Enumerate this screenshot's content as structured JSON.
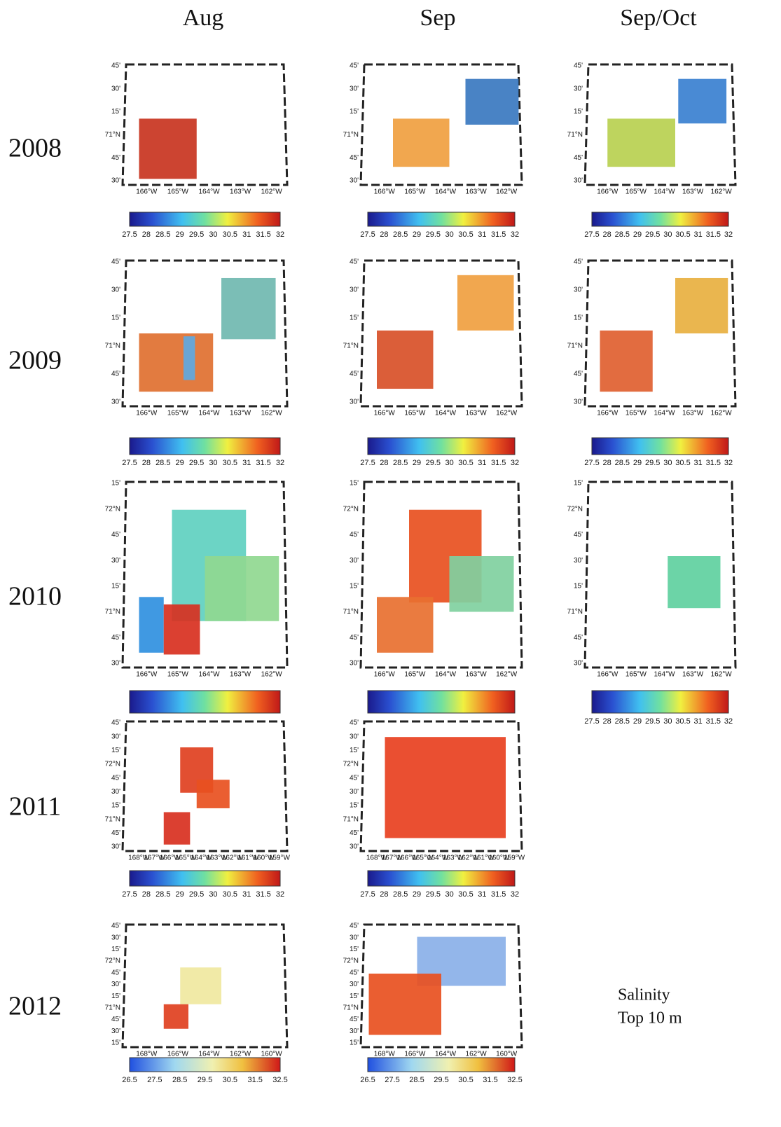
{
  "columns": [
    "Aug",
    "Sep",
    "Sep/Oct"
  ],
  "note": [
    "Salinity",
    "Top 10 m"
  ],
  "rows": [
    {
      "year": "2008",
      "panels": [
        {
          "lat": [
            "45'",
            "30'",
            "15'",
            "71°N",
            "45'",
            "30'"
          ],
          "lon": [
            "166°W",
            "165°W",
            "164°W",
            "163°W",
            "162°W"
          ],
          "colorbar": [
            "27.5",
            "28",
            "28.5",
            "29",
            "29.5",
            "30",
            "30.5",
            "31",
            "31.5",
            "32"
          ]
        },
        {
          "lat": [
            "45'",
            "30'",
            "15'",
            "71°N",
            "45'",
            "30'"
          ],
          "lon": [
            "166°W",
            "165°W",
            "164°W",
            "163°W",
            "162°W"
          ],
          "colorbar": [
            "27.5",
            "28",
            "28.5",
            "29",
            "29.5",
            "30",
            "30.5",
            "31",
            "31.5",
            "32"
          ]
        },
        {
          "lat": [
            "45'",
            "30'",
            "15'",
            "71°N",
            "45'",
            "30'"
          ],
          "lon": [
            "166°W",
            "165°W",
            "164°W",
            "163°W",
            "162°W"
          ],
          "colorbar": [
            "27.5",
            "28",
            "28.5",
            "29",
            "29.5",
            "30",
            "30.5",
            "31",
            "31.5",
            "32"
          ]
        }
      ]
    },
    {
      "year": "2009",
      "panels": [
        {
          "lat": [
            "45'",
            "30'",
            "15'",
            "71°N",
            "45'",
            "30'"
          ],
          "lon": [
            "166°W",
            "165°W",
            "164°W",
            "163°W",
            "162°W"
          ],
          "colorbar": [
            "27.5",
            "28",
            "28.5",
            "29",
            "29.5",
            "30",
            "30.5",
            "31",
            "31.5",
            "32"
          ]
        },
        {
          "lat": [
            "45'",
            "30'",
            "15'",
            "71°N",
            "45'",
            "30'"
          ],
          "lon": [
            "166°W",
            "165°W",
            "164°W",
            "163°W",
            "162°W"
          ],
          "colorbar": [
            "27.5",
            "28",
            "28.5",
            "29",
            "29.5",
            "30",
            "30.5",
            "31",
            "31.5",
            "32"
          ]
        },
        {
          "lat": [
            "45'",
            "30'",
            "15'",
            "71°N",
            "45'",
            "30'"
          ],
          "lon": [
            "166°W",
            "165°W",
            "164°W",
            "163°W",
            "162°W"
          ],
          "colorbar": [
            "27.5",
            "28",
            "28.5",
            "29",
            "29.5",
            "30",
            "30.5",
            "31",
            "31.5",
            "32"
          ]
        }
      ]
    },
    {
      "year": "2010",
      "panels": [
        {
          "lat": [
            "15'",
            "72°N",
            "45'",
            "30'",
            "15'",
            "71°N",
            "45'",
            "30'"
          ],
          "lon": [
            "166°W",
            "165°W",
            "164°W",
            "163°W",
            "162°W"
          ]
        },
        {
          "lat": [
            "15'",
            "72°N",
            "45'",
            "30'",
            "15'",
            "71°N",
            "45'",
            "30'"
          ],
          "lon": [
            "166°W",
            "165°W",
            "164°W",
            "163°W",
            "162°W"
          ]
        },
        {
          "lat": [
            "15'",
            "72°N",
            "45'",
            "30'",
            "15'",
            "71°N",
            "45'",
            "30'"
          ],
          "lon": [
            "166°W",
            "165°W",
            "164°W",
            "163°W",
            "162°W"
          ],
          "colorbar": [
            "27.5",
            "28",
            "28.5",
            "29",
            "29.5",
            "30",
            "30.5",
            "31",
            "31.5",
            "32"
          ]
        }
      ]
    },
    {
      "year": "2011",
      "panels": [
        {
          "lat": [
            "45'",
            "30'",
            "15'",
            "72°N",
            "45'",
            "30'",
            "15'",
            "71°N",
            "45'",
            "30'"
          ],
          "lon": [
            "168°W",
            "167°W",
            "166°W",
            "165°W",
            "164°W",
            "163°W",
            "162°W",
            "161°W",
            "160°W",
            "159°W"
          ],
          "colorbar": [
            "27.5",
            "28",
            "28.5",
            "29",
            "29.5",
            "30",
            "30.5",
            "31",
            "31.5",
            "32"
          ]
        },
        {
          "lat": [
            "45'",
            "30'",
            "15'",
            "72°N",
            "45'",
            "30'",
            "15'",
            "71°N",
            "45'",
            "30'"
          ],
          "lon": [
            "168°W",
            "167°W",
            "166°W",
            "165°W",
            "164°W",
            "163°W",
            "162°W",
            "161°W",
            "160°W",
            "159°W"
          ],
          "colorbar": [
            "27.5",
            "28",
            "28.5",
            "29",
            "29.5",
            "30",
            "30.5",
            "31",
            "31.5",
            "32"
          ]
        }
      ]
    },
    {
      "year": "2012",
      "panels": [
        {
          "lat": [
            "45'",
            "30'",
            "15'",
            "72°N",
            "45'",
            "30'",
            "15'",
            "71°N",
            "45'",
            "30'",
            "15'"
          ],
          "lon": [
            "168°W",
            "166°W",
            "164°W",
            "162°W",
            "160°W"
          ],
          "colorbar": [
            "26.5",
            "27.5",
            "28.5",
            "29.5",
            "30.5",
            "31.5",
            "32.5"
          ]
        },
        {
          "lat": [
            "45'",
            "30'",
            "15'",
            "72°N",
            "45'",
            "30'",
            "15'",
            "71°N",
            "45'",
            "30'",
            "15'"
          ],
          "lon": [
            "168°W",
            "166°W",
            "164°W",
            "162°W",
            "160°W"
          ],
          "colorbar": [
            "26.5",
            "27.5",
            "28.5",
            "29.5",
            "30.5",
            "31.5",
            "32.5"
          ]
        }
      ]
    }
  ]
}
